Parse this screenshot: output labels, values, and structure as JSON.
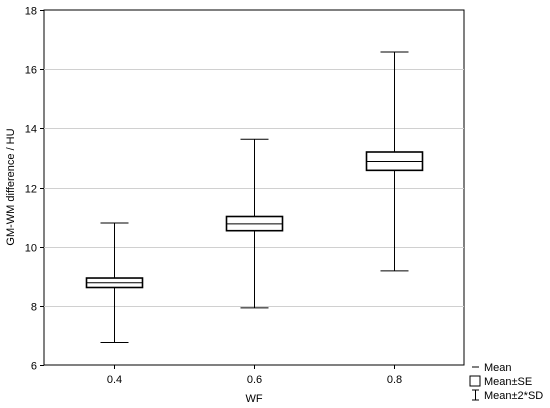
{
  "chart_data": {
    "type": "box",
    "title": "",
    "xlabel": "WF",
    "ylabel": "GM-WM difference / HU",
    "ylim": [
      6,
      18
    ],
    "yticks": [
      6,
      8,
      10,
      12,
      14,
      16,
      18
    ],
    "grid": true,
    "categories": [
      "0.4",
      "0.6",
      "0.8"
    ],
    "boxes": [
      {
        "category": "0.4",
        "mean": 8.78,
        "se_low": 8.62,
        "se_high": 8.94,
        "sd2_low": 6.76,
        "sd2_high": 10.8
      },
      {
        "category": "0.6",
        "mean": 10.77,
        "se_low": 10.54,
        "se_high": 11.02,
        "sd2_low": 7.93,
        "sd2_high": 13.63
      },
      {
        "category": "0.8",
        "mean": 12.88,
        "se_low": 12.58,
        "se_high": 13.2,
        "sd2_low": 9.18,
        "sd2_high": 16.58
      }
    ],
    "legend": {
      "position": "bottom-right",
      "items": [
        "Mean",
        "Mean±SE",
        "Mean±2*SD"
      ]
    }
  }
}
